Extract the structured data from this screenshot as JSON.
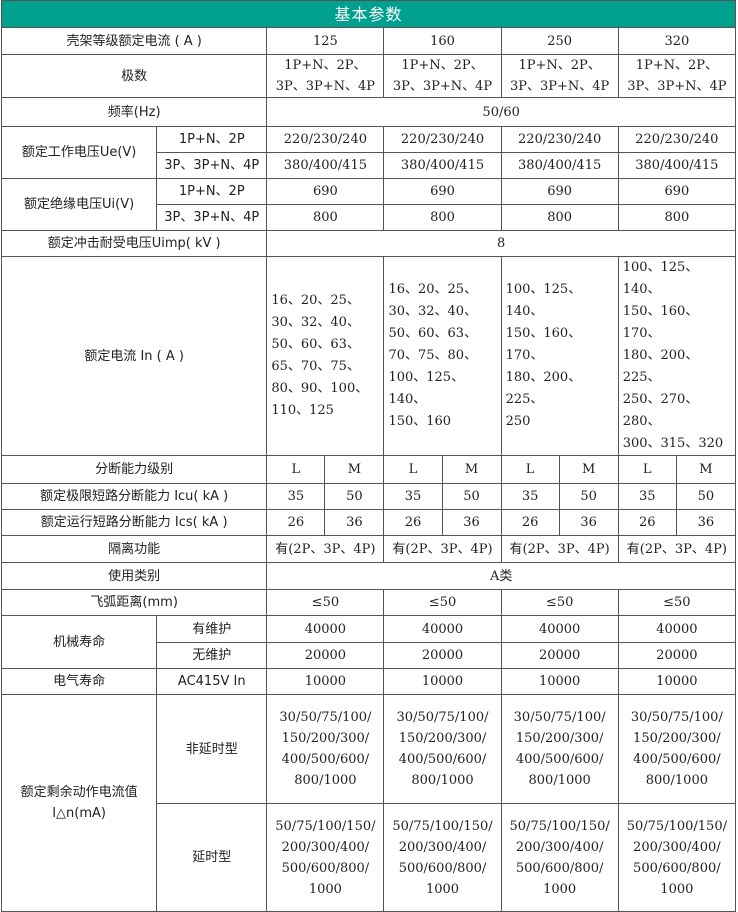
{
  "header": "基本参数",
  "frame": {
    "label": "壳架等级额定电流 ( A )",
    "values": [
      "125",
      "160",
      "250",
      "320"
    ]
  },
  "poles": {
    "label": "极数",
    "values": [
      "1P+N、2P、\n3P、3P+N、4P",
      "1P+N、2P、\n3P、3P+N、4P",
      "1P+N、2P、\n3P、3P+N、4P",
      "1P+N、2P、\n3P、3P+N、4P"
    ]
  },
  "frequency": {
    "label": "频率(Hz)",
    "value": "50/60"
  },
  "ue": {
    "label": "额定工作电压Ue(V)",
    "rows": [
      {
        "sub": "1P+N、2P",
        "values": [
          "220/230/240",
          "220/230/240",
          "220/230/240",
          "220/230/240"
        ]
      },
      {
        "sub": "3P、3P+N、4P",
        "values": [
          "380/400/415",
          "380/400/415",
          "380/400/415",
          "380/400/415"
        ]
      }
    ]
  },
  "ui": {
    "label": "额定绝缘电压Ui(V)",
    "rows": [
      {
        "sub": "1P+N、2P",
        "values": [
          "690",
          "690",
          "690",
          "690"
        ]
      },
      {
        "sub": "3P、3P+N、4P",
        "values": [
          "800",
          "800",
          "800",
          "800"
        ]
      }
    ]
  },
  "uimp": {
    "label": "额定冲击耐受电压Uimp( kV )",
    "value": "8"
  },
  "in": {
    "label": "额定电流 In ( A )",
    "values": [
      "16、20、25、\n30、32、40、\n50、60、63、\n65、70、75、\n80、90、100、\n110、125",
      "16、20、25、\n30、32、40、\n50、60、63、\n70、75、80、\n100、125、140、\n150、160",
      "100、125、140、\n150、160、170、\n180、200、225、\n250",
      "100、125、140、\n150、160、170、\n180、200、225、\n250、270、280、\n300、315、320"
    ]
  },
  "breaking_level": {
    "label": "分断能力级别",
    "values": [
      "L",
      "M",
      "L",
      "M",
      "L",
      "M",
      "L",
      "M"
    ]
  },
  "icu": {
    "label": "额定极限短路分断能力 Icu( kA )",
    "values": [
      "35",
      "50",
      "35",
      "50",
      "35",
      "50",
      "35",
      "50"
    ]
  },
  "ics": {
    "label": "额定运行短路分断能力 Ics( kA )",
    "values": [
      "26",
      "36",
      "26",
      "36",
      "26",
      "36",
      "26",
      "36"
    ]
  },
  "isolation": {
    "label": "隔离功能",
    "values": [
      "有(2P、3P、4P)",
      "有(2P、3P、4P)",
      "有(2P、3P、4P)",
      "有(2P、3P、4P)"
    ]
  },
  "category": {
    "label": "使用类别",
    "value": "A类"
  },
  "arc": {
    "label": "飞弧距离(mm)",
    "values": [
      "≤50",
      "≤50",
      "≤50",
      "≤50"
    ]
  },
  "mech": {
    "label": "机械寿命",
    "rows": [
      {
        "sub": "有维护",
        "values": [
          "40000",
          "40000",
          "40000",
          "40000"
        ]
      },
      {
        "sub": "无维护",
        "values": [
          "20000",
          "20000",
          "20000",
          "20000"
        ]
      }
    ]
  },
  "elec": {
    "label": "电气寿命",
    "sub": "AC415V In",
    "values": [
      "10000",
      "10000",
      "10000",
      "10000"
    ]
  },
  "residual": {
    "label": "额定剩余动作电流值\nI△n(mA)",
    "rows": [
      {
        "sub": "非延时型",
        "values": [
          "30/50/75/100/\n150/200/300/\n400/500/600/\n800/1000",
          "30/50/75/100/\n150/200/300/\n400/500/600/\n800/1000",
          "30/50/75/100/\n150/200/300/\n400/500/600/\n800/1000",
          "30/50/75/100/\n150/200/300/\n400/500/600/\n800/1000"
        ]
      },
      {
        "sub": "延时型",
        "values": [
          "50/75/100/150/\n200/300/400/\n500/600/800/\n1000",
          "50/75/100/150/\n200/300/400/\n500/600/800/\n1000",
          "50/75/100/150/\n200/300/400/\n500/600/800/\n1000",
          "50/75/100/150/\n200/300/400/\n500/600/800/\n1000"
        ]
      }
    ]
  }
}
